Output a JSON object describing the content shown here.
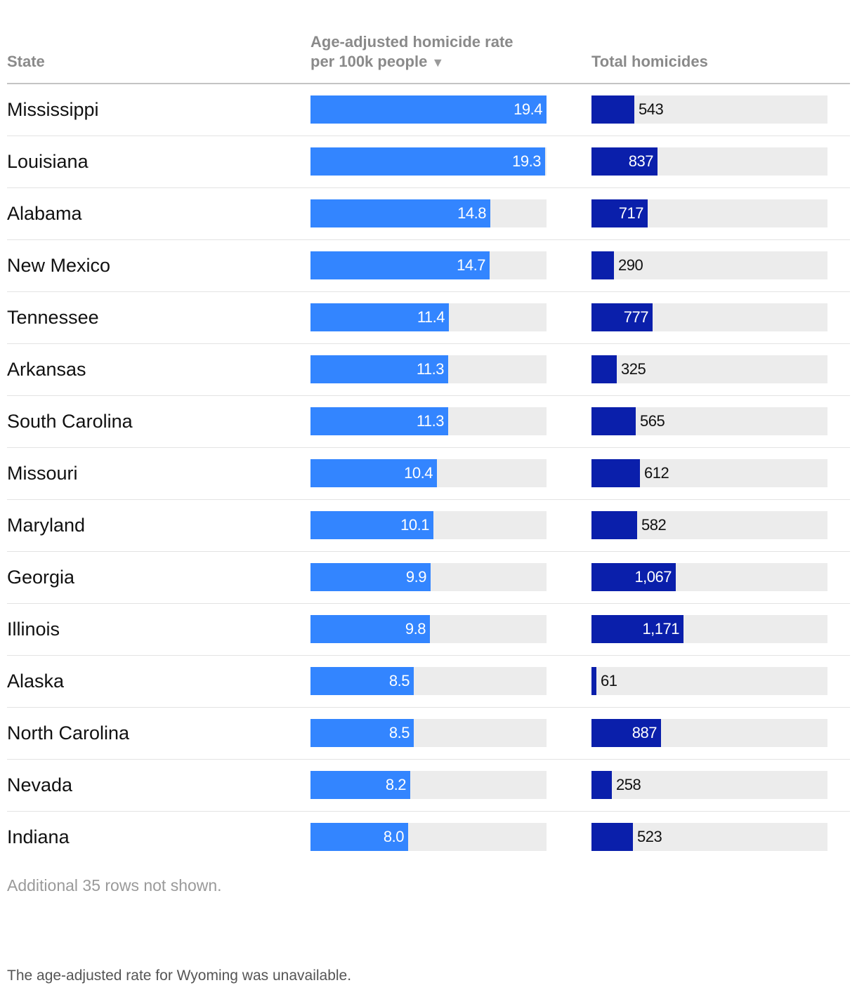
{
  "header": {
    "state": "State",
    "rate_line1": "Age-adjusted homicide rate",
    "rate_line2": "per 100k people",
    "sort_icon": "▼",
    "total": "Total homicides"
  },
  "footnotes": {
    "rows_hidden": "Additional 35 rows not shown.",
    "wyoming": "The age-adjusted rate for Wyoming was unavailable."
  },
  "colors": {
    "rate_bar": "#3385ff",
    "total_bar": "#0a1fab",
    "track": "#ececec"
  },
  "chart_data": {
    "type": "table",
    "columns": [
      "State",
      "Age-adjusted homicide rate per 100k people",
      "Total homicides"
    ],
    "sorted_by": "Age-adjusted homicide rate per 100k people",
    "rate_max": 19.4,
    "total_max": 3000,
    "rows": [
      {
        "state": "Mississippi",
        "rate": 19.4,
        "rate_label": "19.4",
        "total": 543,
        "total_label": "543"
      },
      {
        "state": "Louisiana",
        "rate": 19.3,
        "rate_label": "19.3",
        "total": 837,
        "total_label": "837"
      },
      {
        "state": "Alabama",
        "rate": 14.8,
        "rate_label": "14.8",
        "total": 717,
        "total_label": "717"
      },
      {
        "state": "New Mexico",
        "rate": 14.7,
        "rate_label": "14.7",
        "total": 290,
        "total_label": "290"
      },
      {
        "state": "Tennessee",
        "rate": 11.4,
        "rate_label": "11.4",
        "total": 777,
        "total_label": "777"
      },
      {
        "state": "Arkansas",
        "rate": 11.3,
        "rate_label": "11.3",
        "total": 325,
        "total_label": "325"
      },
      {
        "state": "South Carolina",
        "rate": 11.3,
        "rate_label": "11.3",
        "total": 565,
        "total_label": "565"
      },
      {
        "state": "Missouri",
        "rate": 10.4,
        "rate_label": "10.4",
        "total": 612,
        "total_label": "612"
      },
      {
        "state": "Maryland",
        "rate": 10.1,
        "rate_label": "10.1",
        "total": 582,
        "total_label": "582"
      },
      {
        "state": "Georgia",
        "rate": 9.9,
        "rate_label": "9.9",
        "total": 1067,
        "total_label": "1,067"
      },
      {
        "state": "Illinois",
        "rate": 9.8,
        "rate_label": "9.8",
        "total": 1171,
        "total_label": "1,171"
      },
      {
        "state": "Alaska",
        "rate": 8.5,
        "rate_label": "8.5",
        "total": 61,
        "total_label": "61"
      },
      {
        "state": "North Carolina",
        "rate": 8.5,
        "rate_label": "8.5",
        "total": 887,
        "total_label": "887"
      },
      {
        "state": "Nevada",
        "rate": 8.2,
        "rate_label": "8.2",
        "total": 258,
        "total_label": "258"
      },
      {
        "state": "Indiana",
        "rate": 8.0,
        "rate_label": "8.0",
        "total": 523,
        "total_label": "523"
      }
    ]
  }
}
